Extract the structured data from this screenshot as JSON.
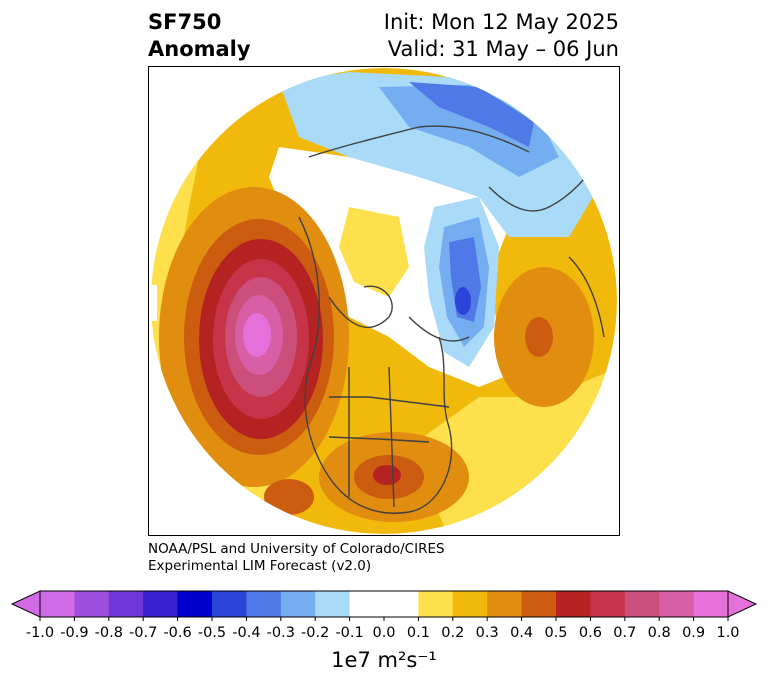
{
  "header": {
    "variable": "SF750",
    "kind": "Anomaly",
    "init": "Init: Mon 12 May 2025",
    "valid": "Valid: 31 May – 06 Jun"
  },
  "credit": {
    "line1": "NOAA/PSL and University of Colorado/CIRES",
    "line2": "Experimental LIM Forecast (v2.0)"
  },
  "map": {
    "projection": "north-polar-stereographic",
    "land_outline_color": "#404040",
    "anomaly_regions": [
      {
        "feature": "north-pacific-ridge",
        "peak_value": 0.9
      },
      {
        "feature": "central-us-ridge",
        "peak_value": 0.6
      },
      {
        "feature": "western-russia-ridge",
        "peak_value": 0.5
      },
      {
        "feature": "southwest-us-ridge",
        "peak_value": 0.5
      },
      {
        "feature": "barents-kara-trough",
        "peak_value": -0.5
      },
      {
        "feature": "siberia-arctic-trough",
        "peak_value": -0.4
      }
    ]
  },
  "colorbar": {
    "levels": [
      -1.0,
      -0.9,
      -0.8,
      -0.7,
      -0.6,
      -0.5,
      -0.4,
      -0.3,
      -0.2,
      -0.1,
      0.0,
      0.1,
      0.2,
      0.3,
      0.4,
      0.5,
      0.6,
      0.7,
      0.8,
      0.9,
      1.0
    ],
    "tick_labels": [
      "-1.0",
      "-0.9",
      "-0.8",
      "-0.7",
      "-0.6",
      "-0.5",
      "-0.4",
      "-0.3",
      "-0.2",
      "-0.1",
      "0.0",
      "0.1",
      "0.2",
      "0.3",
      "0.4",
      "0.5",
      "0.6",
      "0.7",
      "0.8",
      "0.9",
      "1.0"
    ],
    "colors": [
      "#d26be8",
      "#9f4fe0",
      "#6f36d9",
      "#3a1fd0",
      "#0000cc",
      "#2c45d8",
      "#4f79e6",
      "#75aef0",
      "#a9daf8",
      "#ffffff",
      "#ffffff",
      "#fde04c",
      "#f2b90d",
      "#e08d10",
      "#cc5c10",
      "#b52222",
      "#c6344a",
      "#cc4e7a",
      "#d85ea6",
      "#e670d9"
    ],
    "extend_below_color": "#d26be8",
    "extend_above_color": "#e670d9",
    "unit_label": "1e7 m²s⁻¹"
  }
}
